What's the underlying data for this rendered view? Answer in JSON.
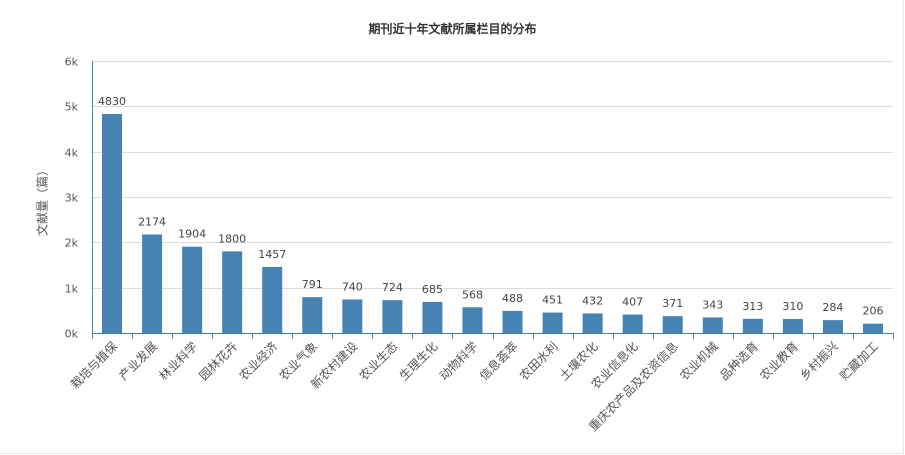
{
  "colors": {
    "bar": "#4682b4",
    "axis": "#4682b4",
    "grid": "#dcdcdc",
    "text": "#555555"
  },
  "chart_data": {
    "type": "bar",
    "title": "期刊近十年文献所属栏目的分布",
    "ylabel": "文献量（篇）",
    "xlabel": "",
    "ylim": [
      0,
      6000
    ],
    "yticks": [
      {
        "value": 0,
        "label": "0k"
      },
      {
        "value": 1000,
        "label": "1k"
      },
      {
        "value": 2000,
        "label": "2k"
      },
      {
        "value": 3000,
        "label": "3k"
      },
      {
        "value": 4000,
        "label": "4k"
      },
      {
        "value": 5000,
        "label": "5k"
      },
      {
        "value": 6000,
        "label": "6k"
      }
    ],
    "grid": true,
    "categories": [
      "栽培与植保",
      "产业发展",
      "林业科学",
      "园林花卉",
      "农业经济",
      "农业气象",
      "新农村建设",
      "农业生态",
      "生理生化",
      "动物科学",
      "信息荟萃",
      "农田水利",
      "土壤农化",
      "农业信息化",
      "重庆农产品及农资信息",
      "农业机械",
      "品种选育",
      "农业教育",
      "乡村振兴",
      "贮藏加工"
    ],
    "values": [
      4830,
      2174,
      1904,
      1800,
      1457,
      791,
      740,
      724,
      685,
      568,
      488,
      451,
      432,
      407,
      371,
      343,
      313,
      310,
      284,
      206
    ]
  }
}
